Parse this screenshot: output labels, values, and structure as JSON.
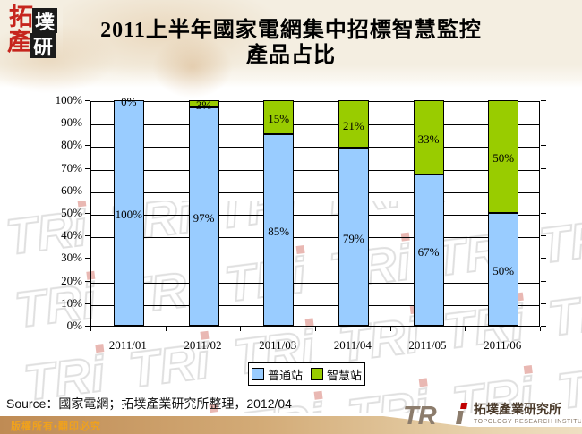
{
  "header": {
    "logo": {
      "c1": "拓",
      "c2": "墣",
      "c3": "產",
      "c4": "研"
    },
    "title_line1": "2011上半年國家電網集中招標智慧監控",
    "title_line2": "產品占比"
  },
  "chart_data": {
    "type": "bar",
    "stacked": true,
    "title": "2011上半年國家電網集中招標智慧監控產品占比",
    "categories": [
      "2011/01",
      "2011/02",
      "2011/03",
      "2011/04",
      "2011/05",
      "2011/06"
    ],
    "series": [
      {
        "name": "普通站",
        "color": "#99CCFF",
        "values": [
          100,
          97,
          85,
          79,
          67,
          50
        ]
      },
      {
        "name": "智慧站",
        "color": "#99CC00",
        "values": [
          0,
          3,
          15,
          21,
          33,
          50
        ]
      }
    ],
    "value_labels": true,
    "xlabel": "",
    "ylabel": "",
    "ylim": [
      0,
      100
    ],
    "ytick_step": 10,
    "ytick_labels": [
      "0%",
      "10%",
      "20%",
      "30%",
      "40%",
      "50%",
      "60%",
      "70%",
      "80%",
      "90%",
      "100%"
    ],
    "grid": true,
    "legend_position": "bottom"
  },
  "legend": {
    "items": [
      {
        "label": "普通站",
        "color": "#99CCFF"
      },
      {
        "label": "智慧站",
        "color": "#99CC00"
      }
    ]
  },
  "footer": {
    "source": "Source：國家電網；拓墣產業研究所整理，2012/04",
    "copyright": "版權所有•翻印必究",
    "tri_logo": {
      "acronym": "TR",
      "name_zh": "拓墣產業研究所",
      "name_en": "TOPOLOGY RESEARCH INSTITUTE"
    }
  },
  "watermark_text": "TRi"
}
